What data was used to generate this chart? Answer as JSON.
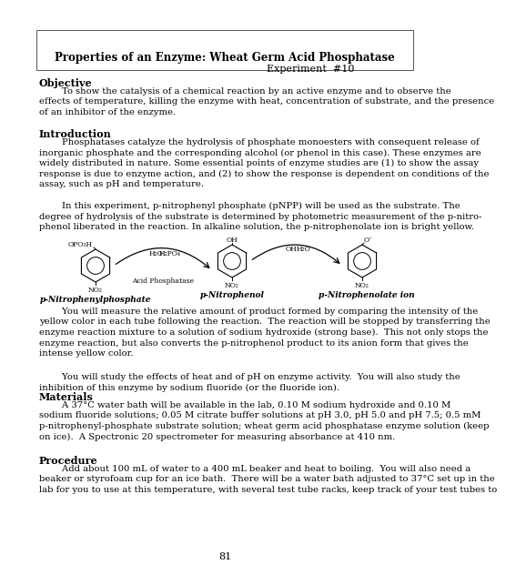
{
  "title": "Properties of an Enzyme: Wheat Germ Acid Phosphatase",
  "experiment": "Experiment  #10",
  "background": "#ffffff",
  "page_number": "81",
  "sections": {
    "objective_header": "Objective",
    "objective_text": "        To show the catalysis of a chemical reaction by an active enzyme and to observe the\neffects of temperature, killing the enzyme with heat, concentration of substrate, and the presence\nof an inhibitor of the enzyme.",
    "introduction_header": "Introduction",
    "introduction_text1": "        Phosphatases catalyze the hydrolysis of phosphate monoesters with consequent release of\ninorganic phosphate and the corresponding alcohol (or phenol in this case). These enzymes are\nwidely distributed in nature. Some essential points of enzyme studies are (1) to show the assay\nresponse is due to enzyme action, and (2) to show the response is dependent on conditions of the\nassay, such as pH and temperature.",
    "introduction_text2": "        In this experiment, p-nitrophenyl phosphate (pNPP) will be used as the substrate. The\ndegree of hydrolysis of the substrate is determined by photometric measurement of the p-nitro-\nphenol liberated in the reaction. In alkaline solution, the p-nitrophenolate ion is bright yellow.",
    "chem_label1": "p-Nitrophenylphosphate",
    "chem_label2": "p-Nitrophenol",
    "chem_label3": "p-Nitrophenolate ion",
    "acid_phosphatase": "Acid Phosphatase",
    "intro_text3": "        You will measure the relative amount of product formed by comparing the intensity of the\nyellow color in each tube following the reaction.  The reaction will be stopped by transferring the\nenzyme reaction mixture to a solution of sodium hydroxide (strong base).  This not only stops the\nenzyme reaction, but also converts the p-nitrophenol product to its anion form that gives the\nintense yellow color.",
    "intro_text4": "        You will study the effects of heat and of pH on enzyme activity.  You will also study the\ninhibition of this enzyme by sodium fluoride (or the fluoride ion).",
    "materials_header": "Materials",
    "materials_text": "        A 37°C water bath will be available in the lab, 0.10 M sodium hydroxide and 0.10 M\nsodium fluoride solutions; 0.05 M citrate buffer solutions at pH 3.0, pH 5.0 and pH 7.5; 0.5 mM\np-nitrophenyl-phosphate substrate solution; wheat germ acid phosphatase enzyme solution (keep\non ice).  A Spectronic 20 spectrometer for measuring absorbance at 410 nm.",
    "procedure_header": "Procedure",
    "procedure_text": "        Add about 100 mL of water to a 400 mL beaker and heat to boiling.  You will also need a\nbeaker or styrofoam cup for an ice bath.  There will be a water bath adjusted to 37°C set up in the\nlab for you to use at this temperature, with several test tube racks, keep track of your test tubes to"
  }
}
